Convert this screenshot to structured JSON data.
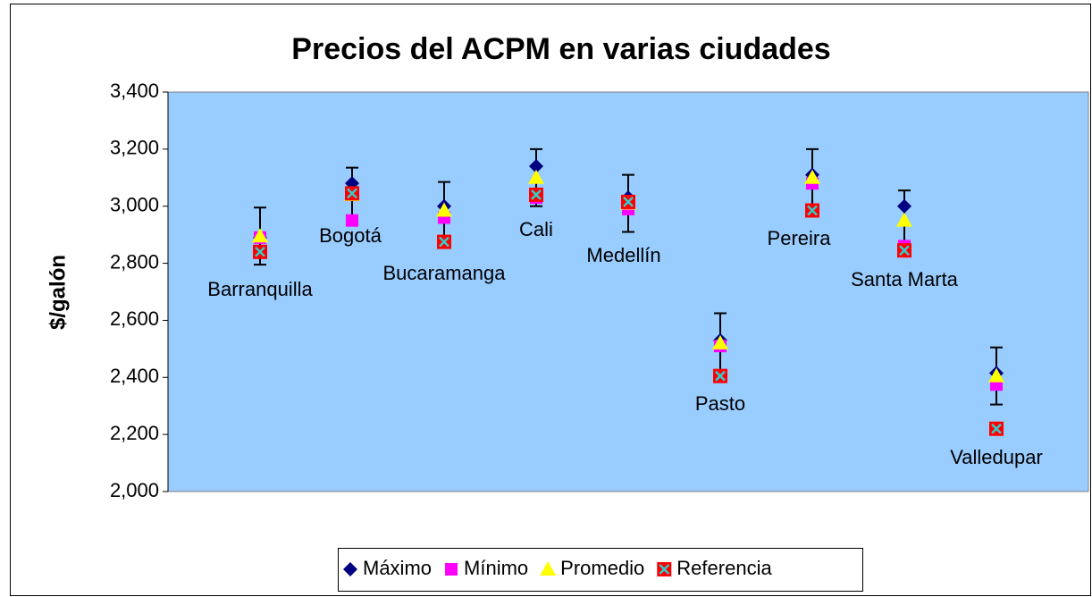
{
  "chart_data": {
    "type": "scatter",
    "title": "Precios del ACPM en varias ciudades",
    "y_label": "$/galón",
    "x": [
      1,
      2,
      3,
      4,
      5,
      6,
      7,
      8,
      9
    ],
    "xlim": [
      0,
      10
    ],
    "labels": [
      "Barranquilla",
      "Bogotá",
      "Bucaramanga",
      "Cali",
      "Medellín",
      "Pasto",
      "Pereira",
      "Santa Marta",
      "Valledupar"
    ],
    "series": [
      {
        "name": "Máximo",
        "color": "#000080",
        "marker": "diamond",
        "values": [
          2890,
          3080,
          3000,
          3140,
          3030,
          2530,
          3110,
          3000,
          2415
        ]
      },
      {
        "name": "Mínimo",
        "color": "#ff00ff",
        "marker": "square",
        "values": [
          2890,
          2950,
          2960,
          3030,
          2990,
          2510,
          3080,
          2860,
          2375
        ]
      },
      {
        "name": "Promedio",
        "color": "#ffff00",
        "marker": "triangle",
        "values": [
          2895,
          3040,
          2985,
          3100,
          3010,
          2520,
          3100,
          2950,
          2405
        ],
        "error": [
          100,
          95,
          100,
          100,
          100,
          105,
          100,
          105,
          100
        ]
      },
      {
        "name": "Referencia",
        "color": "#ff0000",
        "marker": "xsquare",
        "values": [
          2840,
          3045,
          2875,
          3040,
          3015,
          2405,
          2985,
          2845,
          2220
        ]
      }
    ],
    "ylim": [
      2000,
      3400
    ],
    "yticks": [
      {
        "value": 2000,
        "label": "2,000"
      },
      {
        "value": 2200,
        "label": "2,200"
      },
      {
        "value": 2400,
        "label": "2,400"
      },
      {
        "value": 2600,
        "label": "2,600"
      },
      {
        "value": 2800,
        "label": "2,800"
      },
      {
        "value": 3000,
        "label": "3,000"
      },
      {
        "value": 3200,
        "label": "3,200"
      },
      {
        "value": 3400,
        "label": "3,400"
      }
    ],
    "plot_background": "#99ccff",
    "legend": "bottom"
  }
}
